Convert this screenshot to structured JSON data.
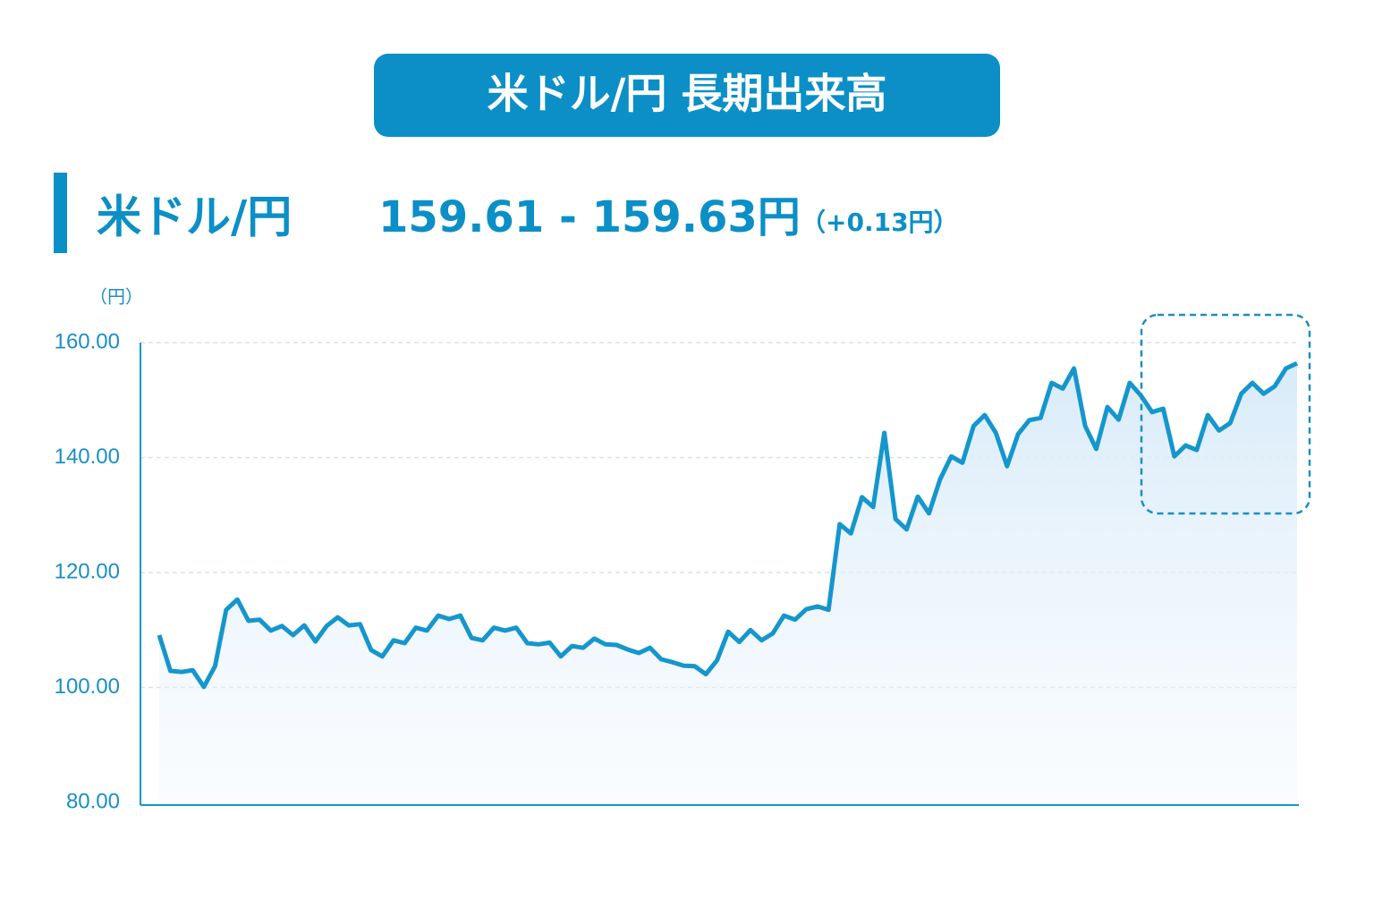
{
  "chart_data": {
    "type": "line",
    "title": "米ドル/円 長期出来高",
    "pair_label": "米ドル/円",
    "quote": "159.61 - 159.63円",
    "change": "（+0.13円）",
    "y_unit": "（円）",
    "ylim": [
      80,
      160
    ],
    "yticks": [
      {
        "value": 80,
        "label": "80.00"
      },
      {
        "value": 100,
        "label": "100.00"
      },
      {
        "value": 120,
        "label": "120.00"
      },
      {
        "value": 140,
        "label": "140.00"
      },
      {
        "value": 160,
        "label": "160.00"
      }
    ],
    "grid": true,
    "series": [
      {
        "color": "#1596cc",
        "values": [
          109.1,
          102.9,
          102.7,
          103.0,
          100.1,
          103.7,
          113.5,
          115.3,
          111.6,
          111.8,
          109.9,
          110.7,
          109.1,
          110.8,
          108.0,
          110.7,
          112.2,
          110.8,
          111.0,
          106.5,
          105.4,
          108.2,
          107.7,
          110.4,
          109.9,
          112.5,
          111.9,
          112.5,
          108.6,
          108.2,
          110.4,
          109.9,
          110.4,
          107.7,
          107.5,
          107.8,
          105.4,
          107.2,
          106.9,
          108.5,
          107.5,
          107.4,
          106.6,
          106.0,
          106.9,
          104.9,
          104.4,
          103.8,
          103.7,
          102.3,
          104.7,
          109.7,
          107.9,
          110.0,
          108.2,
          109.4,
          112.5,
          111.8,
          113.6,
          114.1,
          113.5,
          128.4,
          126.8,
          133.1,
          131.4,
          144.3,
          129.3,
          127.5,
          133.2,
          130.3,
          136.2,
          140.2,
          139.1,
          145.5,
          147.4,
          144.3,
          138.5,
          144.1,
          146.5,
          146.9,
          153.0,
          152.0,
          155.5,
          145.5,
          141.5,
          148.8,
          146.6,
          153.0,
          150.8,
          147.9,
          148.5,
          140.2,
          142.1,
          141.3,
          147.4,
          144.7,
          146.0,
          151.1,
          153.0,
          151.1,
          152.4,
          155.5,
          156.4
        ]
      }
    ]
  }
}
